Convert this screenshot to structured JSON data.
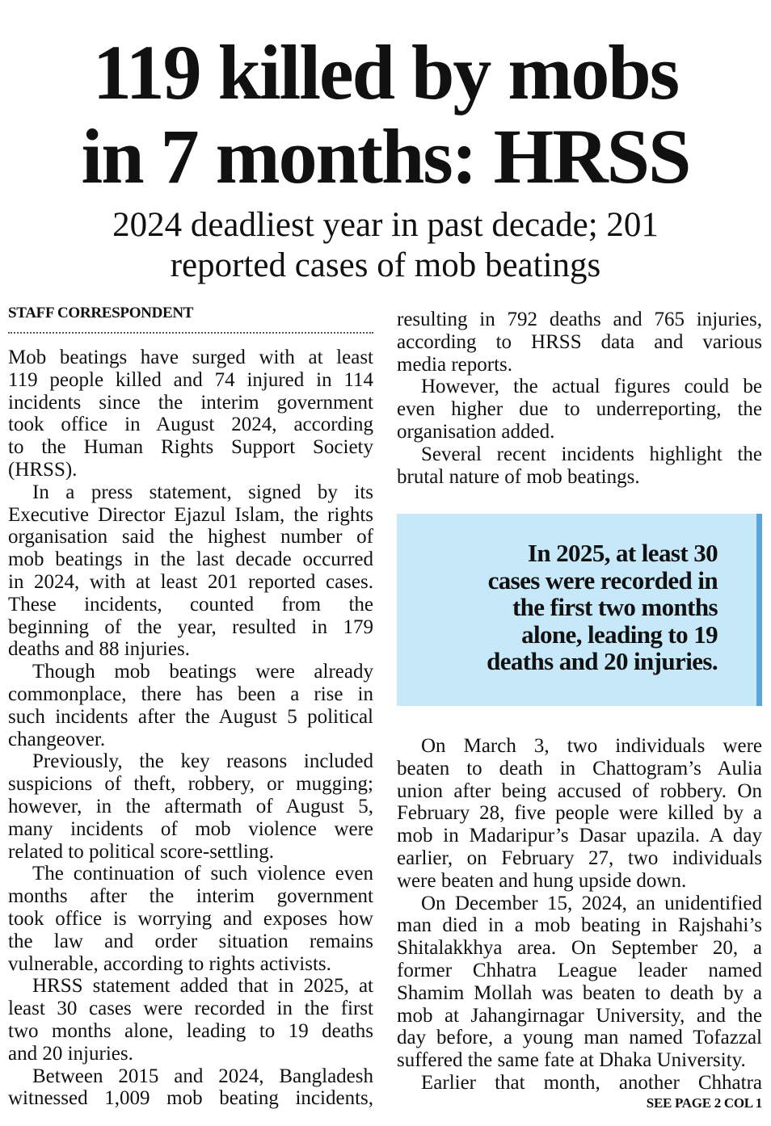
{
  "headline": {
    "line1": "119 killed by mobs",
    "line2": "in 7 months: HRSS"
  },
  "subhead": {
    "line1": "2024 deadliest year in past decade; 201",
    "line2": "reported cases of mob beatings"
  },
  "byline": "STAFF CORRESPONDENT",
  "colors": {
    "pullquote_bg": "#c6e8f8",
    "pullquote_border": "#5aa5dc"
  },
  "pullquote": [
    "In 2025, at least 30",
    "cases were recorded in",
    "the first two months",
    "alone, leading to 19",
    "deaths and 20 injuries."
  ],
  "columns": {
    "left": [
      {
        "indent": false,
        "lines": [
          "Mob beatings have surged with at least",
          "119 people killed and 74 injured in 114",
          "incidents since the interim government",
          "took office in August 2024, according",
          "to the Human Rights Support Society",
          "(HRSS)."
        ]
      },
      {
        "indent": true,
        "lines": [
          "In a press statement, signed by its",
          "Executive Director Ejazul Islam, the rights",
          "organisation said the highest number of",
          "mob beatings in the last decade occurred",
          "in 2024, with at least 201 reported cases.",
          "These incidents, counted from the",
          "beginning of the year, resulted in 179",
          "deaths and 88 injuries."
        ]
      },
      {
        "indent": true,
        "lines": [
          "Though mob beatings were already",
          "commonplace, there has been a rise in",
          "such incidents after the August 5 political",
          "changeover."
        ]
      },
      {
        "indent": true,
        "lines": [
          "Previously, the key reasons included",
          "suspicions of theft, robbery, or mugging;",
          "however, in the aftermath of August 5,",
          "many incidents of mob violence were",
          "related to political score-settling."
        ]
      },
      {
        "indent": true,
        "lines": [
          "The continuation of such violence even",
          "months after the interim government",
          "took office is worrying and exposes how",
          "the law and order situation remains",
          "vulnerable, according to rights activists."
        ]
      },
      {
        "indent": true,
        "lines": [
          "HRSS statement added that in 2025, at",
          "least 30 cases were recorded in the first",
          "two months alone, leading to 19 deaths",
          "and 20 injuries."
        ]
      },
      {
        "indent": true,
        "continues": true,
        "lines": [
          "Between 2015 and 2024, Bangladesh",
          "witnessed 1,009 mob beating incidents,"
        ]
      }
    ],
    "right_top": [
      {
        "indent": false,
        "lines": [
          "resulting in 792 deaths and 765 injuries,",
          "according to HRSS data and various",
          "media reports."
        ]
      },
      {
        "indent": true,
        "lines": [
          "However, the actual figures could be",
          "even higher due to underreporting, the",
          "organisation added."
        ]
      },
      {
        "indent": true,
        "lines": [
          "Several recent incidents highlight the",
          "brutal nature of mob beatings."
        ]
      }
    ],
    "right_bottom": [
      {
        "indent": true,
        "lines": [
          "On March 3, two individuals were",
          "beaten to death in Chattogram’s Aulia",
          "union after being accused of robbery. On",
          "February 28, five people were killed by a",
          "mob in Madaripur’s Dasar upazila. A day",
          "earlier, on February 27, two individuals",
          "were beaten and hung upside down."
        ]
      },
      {
        "indent": true,
        "lines": [
          "On December 15, 2024, an unidentified",
          "man died in a mob beating in Rajshahi’s",
          "Shitalakkhya area. On September 20, a",
          "former Chhatra League leader named",
          "Shamim Mollah was beaten to death by a",
          "mob at Jahangirnagar University, and the",
          "day before, a young man named Tofazzal",
          "suffered the same fate at Dhaka University."
        ]
      },
      {
        "indent": true,
        "continues": true,
        "lines": [
          "Earlier that month, another Chhatra"
        ]
      }
    ]
  },
  "footer": "SEE PAGE 2 COL 1"
}
